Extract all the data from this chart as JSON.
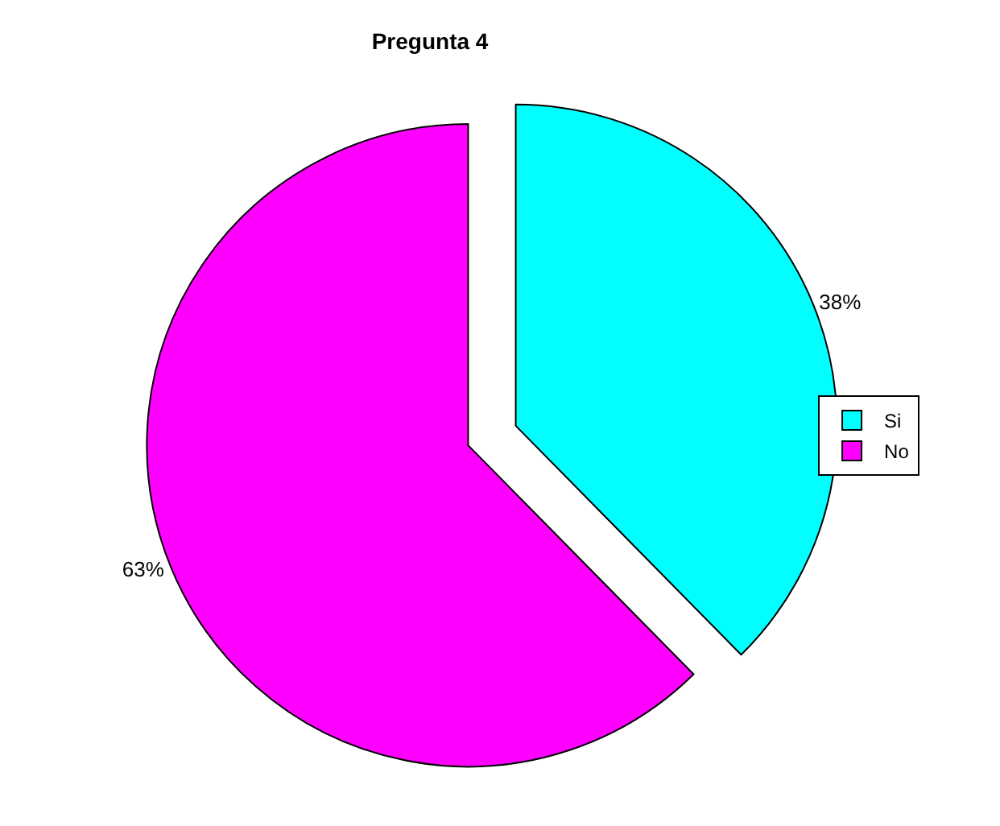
{
  "chart_data": {
    "type": "pie",
    "title": "Pregunta 4",
    "categories": [
      "Si",
      "No"
    ],
    "values": [
      38,
      63
    ],
    "colors": [
      "#00ffff",
      "#ff00ff"
    ],
    "value_labels": [
      "38%",
      "63%"
    ],
    "legend": "right"
  }
}
